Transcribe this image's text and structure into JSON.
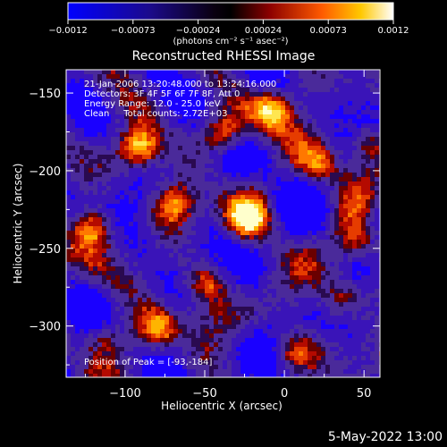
{
  "chart_data": {
    "type": "heatmap",
    "title": "Reconstructed RHESSI Image",
    "xlabel": "Heliocentric X (arcsec)",
    "ylabel": "Heliocentric Y (arcsec)",
    "xlim": [
      -137,
      60
    ],
    "ylim": [
      -333,
      -135
    ],
    "x_ticks": [
      -100,
      -50,
      0,
      50
    ],
    "y_ticks": [
      -150,
      -200,
      -250,
      -300
    ],
    "x_tick_labels": [
      "−100",
      "−50",
      "0",
      "50"
    ],
    "y_tick_labels": [
      "−150",
      "−200",
      "−250",
      "−300"
    ],
    "annotations": [
      "21-Jan-2006 13:20:48.000 to 13:24:16.000",
      "Detectors: 3F 4F 5F 6F 7F 8F, Att 0",
      "Energy Range: 12.0 - 25.0 keV",
      "Clean     Total counts: 2.72E+03"
    ],
    "peak_annotation": "Position of Peak = [-93,-184]",
    "peak_position": [
      -93,
      -184
    ],
    "colorbar": {
      "range": [
        -0.0012,
        0.0012
      ],
      "tick_labels": [
        "−0.0012",
        "−0.00073",
        "−0.00024",
        "0.00024",
        "0.00073",
        "0.0012"
      ],
      "label": "(photons cm⁻² s⁻¹ asec⁻²)"
    },
    "hot_spots": [
      {
        "x": -93,
        "y": -184,
        "peak": 1.0
      },
      {
        "x": -40,
        "y": -175,
        "peak": 0.9
      },
      {
        "x": -10,
        "y": -160,
        "peak": 0.85
      },
      {
        "x": -120,
        "y": -235,
        "peak": 0.75
      },
      {
        "x": -70,
        "y": -220,
        "peak": 0.7
      },
      {
        "x": -25,
        "y": -230,
        "peak": 0.8
      },
      {
        "x": 20,
        "y": -195,
        "peak": 0.7
      },
      {
        "x": 50,
        "y": -180,
        "peak": 0.7
      },
      {
        "x": -50,
        "y": -270,
        "peak": 0.75
      },
      {
        "x": -80,
        "y": -300,
        "peak": 0.85
      },
      {
        "x": 35,
        "y": -280,
        "peak": 0.7
      },
      {
        "x": 5,
        "y": -315,
        "peak": 0.6
      },
      {
        "x": -115,
        "y": -305,
        "peak": 0.65
      },
      {
        "x": 45,
        "y": -245,
        "peak": 0.55
      }
    ]
  },
  "footer": {
    "date": "5-May-2022 13:00"
  }
}
